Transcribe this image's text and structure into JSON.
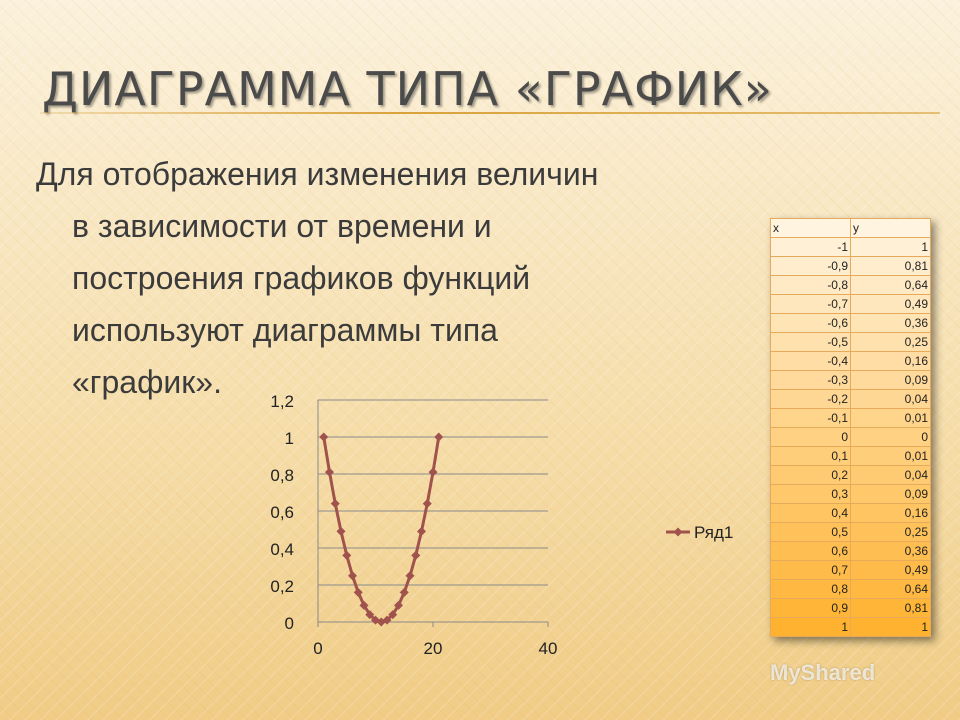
{
  "slide": {
    "title": "ДИАГРАММА ТИПА «ГРАФИК»",
    "bullet": {
      "line1": "Для отображения изменения величин",
      "line2": "в зависимости от времени и",
      "line3": "построения графиков функций",
      "line4": "используют диаграммы типа",
      "line5": "«график»."
    }
  },
  "table": {
    "headers": [
      "x",
      "y"
    ],
    "rows": [
      [
        "-1",
        "1"
      ],
      [
        "-0,9",
        "0,81"
      ],
      [
        "-0,8",
        "0,64"
      ],
      [
        "-0,7",
        "0,49"
      ],
      [
        "-0,6",
        "0,36"
      ],
      [
        "-0,5",
        "0,25"
      ],
      [
        "-0,4",
        "0,16"
      ],
      [
        "-0,3",
        "0,09"
      ],
      [
        "-0,2",
        "0,04"
      ],
      [
        "-0,1",
        "0,01"
      ],
      [
        "0",
        "0"
      ],
      [
        "0,1",
        "0,01"
      ],
      [
        "0,2",
        "0,04"
      ],
      [
        "0,3",
        "0,09"
      ],
      [
        "0,4",
        "0,16"
      ],
      [
        "0,5",
        "0,25"
      ],
      [
        "0,6",
        "0,36"
      ],
      [
        "0,7",
        "0,49"
      ],
      [
        "0,8",
        "0,64"
      ],
      [
        "0,9",
        "0,81"
      ],
      [
        "1",
        "1"
      ]
    ]
  },
  "chart_data": {
    "type": "line",
    "x": [
      1,
      2,
      3,
      4,
      5,
      6,
      7,
      8,
      9,
      10,
      11,
      12,
      13,
      14,
      15,
      16,
      17,
      18,
      19,
      20,
      21
    ],
    "series": [
      {
        "name": "Ряд1",
        "color": "#a0524d",
        "values": [
          1,
          0.81,
          0.64,
          0.49,
          0.36,
          0.25,
          0.16,
          0.09,
          0.04,
          0.01,
          0,
          0.01,
          0.04,
          0.09,
          0.16,
          0.25,
          0.36,
          0.49,
          0.64,
          0.81,
          1
        ]
      }
    ],
    "xlim": [
      0,
      40
    ],
    "ylim": [
      0,
      1.2
    ],
    "xticks": [
      0,
      20,
      40
    ],
    "xtick_labels": [
      "0",
      "20",
      "40"
    ],
    "yticks": [
      0,
      0.2,
      0.4,
      0.6,
      0.8,
      1,
      1.2
    ],
    "ytick_labels": [
      "0",
      "0,2",
      "0,4",
      "0,6",
      "0,8",
      "1",
      "1,2"
    ],
    "grid": true,
    "legend": "right"
  },
  "watermark": "MyShared"
}
